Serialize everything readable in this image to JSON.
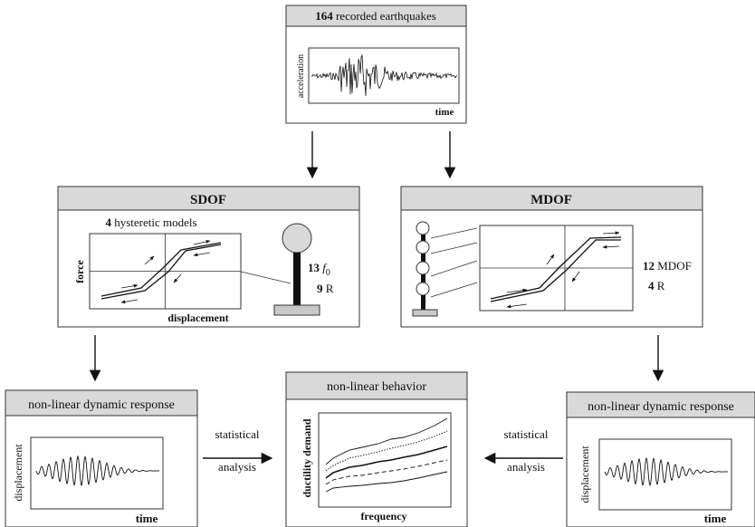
{
  "earthquakes": {
    "count": "164",
    "title_rest": " recorded earthquakes",
    "ylabel": "acceleration",
    "xlabel": "time"
  },
  "sdof": {
    "title": "SDOF",
    "models_count": "4",
    "models_text": " hysteretic models",
    "ylabel": "force",
    "xlabel": "displacement",
    "f0_count": "13",
    "f0_symbol": "f",
    "f0_sub": "0",
    "r_count": "9",
    "r_symbol": "R"
  },
  "mdof": {
    "title": "MDOF",
    "mdof_count": "12",
    "mdof_text": "MDOF",
    "r_count": "4",
    "r_symbol": "R"
  },
  "left_response": {
    "title": "non-linear dynamic response",
    "ylabel": "displacement",
    "xlabel": "time"
  },
  "right_response": {
    "title": "non-linear dynamic response",
    "ylabel": "displacement",
    "xlabel": "time"
  },
  "behavior": {
    "title": "non-linear behavior",
    "ylabel": "ductility demand",
    "xlabel": "frequency"
  },
  "arrows": {
    "left_label_line1": "statistical",
    "left_label_line2": "analysis",
    "right_label_line1": "statistical",
    "right_label_line2": "analysis"
  }
}
